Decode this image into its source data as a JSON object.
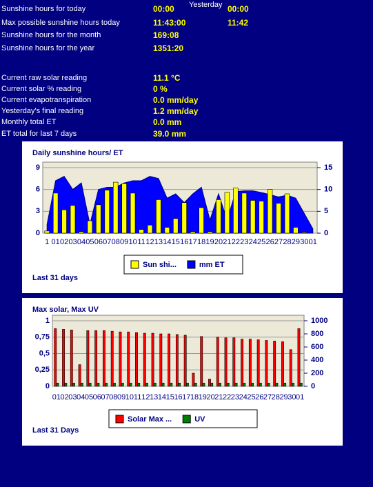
{
  "info": {
    "yesterday_header": "Yesterday",
    "rows": [
      {
        "label": "Sunshine hours for today",
        "value": "00:00",
        "yesterday": "00:00"
      },
      {
        "label": "Max possible sunshine hours today",
        "value": "11:43:00",
        "yesterday": "11:42"
      },
      {
        "label": "Sunshine hours for the month",
        "value": "169:08"
      },
      {
        "label": "Sunshine hours for the year",
        "value": "1351:20"
      },
      {
        "label": "Current raw solar reading",
        "value": "11.1 °C"
      },
      {
        "label": "Current solar % reading",
        "value": "0 %"
      },
      {
        "label": "Current evapotranspiration",
        "value": "0.0 mm/day"
      },
      {
        "label": "Yesterday's final reading",
        "value": "1.2 mm/day"
      },
      {
        "label": "Monthly total ET",
        "value": "0.0 mm"
      },
      {
        "label": "ET total for last 7 days",
        "value": "39.0 mm"
      }
    ]
  },
  "chart_data": [
    {
      "type": "bar",
      "title": "Daily sunshine hours/ ET",
      "footer": "Last 31 days",
      "grid": true,
      "categories": [
        "1",
        "01",
        "02",
        "03",
        "04",
        "05",
        "06",
        "07",
        "08",
        "09",
        "10",
        "11",
        "12",
        "13",
        "14",
        "15",
        "16",
        "17",
        "18",
        "19",
        "20",
        "21",
        "22",
        "23",
        "24",
        "25",
        "26",
        "27",
        "28",
        "29",
        "30",
        "01"
      ],
      "ylim": [
        0,
        9
      ],
      "yticks": [
        0,
        3,
        6,
        9
      ],
      "y2lim": [
        0,
        15
      ],
      "y2ticks": [
        0,
        5,
        10,
        15
      ],
      "series": [
        {
          "name": "Sun shi...",
          "type": "bar",
          "color": "#ffff00",
          "values": [
            0.3,
            5.5,
            3.2,
            3.8,
            0.2,
            1.7,
            3.9,
            5.9,
            7.0,
            6.8,
            5.5,
            0.5,
            1.1,
            4.6,
            0.8,
            2.0,
            4.2,
            0.2,
            3.5,
            0.2,
            4.6,
            5.6,
            6.2,
            5.5,
            4.5,
            4.4,
            6.0,
            4.1,
            5.4,
            0.8,
            0.1,
            null
          ]
        },
        {
          "name": "mm ET",
          "type": "area",
          "axis": "y2",
          "color": "#0000ff",
          "values": [
            2,
            12,
            13,
            10,
            11.5,
            2,
            10,
            10.5,
            10.5,
            11.5,
            12,
            12,
            13,
            12.5,
            8,
            9,
            7,
            9,
            10.5,
            3,
            9,
            3,
            9.5,
            9.7,
            9.7,
            9.3,
            8.8,
            8.3,
            8.7,
            8.0,
            4.5,
            1
          ]
        }
      ]
    },
    {
      "type": "bar",
      "title": "Max solar, Max UV",
      "footer": "Last 31 Days",
      "grid": true,
      "categories": [
        "01",
        "02",
        "03",
        "04",
        "05",
        "06",
        "07",
        "08",
        "09",
        "10",
        "11",
        "12",
        "13",
        "14",
        "15",
        "16",
        "17",
        "18",
        "19",
        "20",
        "21",
        "22",
        "23",
        "24",
        "25",
        "26",
        "27",
        "28",
        "29",
        "30",
        "01"
      ],
      "ylim": [
        0,
        1
      ],
      "yticks": [
        0,
        {
          "value": 0.25,
          "label": "0,25"
        },
        {
          "value": 0.5,
          "label": "0,5"
        },
        {
          "value": 0.75,
          "label": "0,75"
        },
        1
      ],
      "y2lim": [
        0,
        1000
      ],
      "y2ticks": [
        0,
        200,
        400,
        600,
        800,
        1000
      ],
      "series": [
        {
          "name": "Solar Max ...",
          "type": "bar",
          "axis": "y2",
          "color": "#ff0000",
          "values": [
            880,
            870,
            860,
            330,
            850,
            850,
            850,
            840,
            830,
            830,
            820,
            810,
            810,
            800,
            800,
            790,
            780,
            200,
            760,
            110,
            750,
            740,
            740,
            720,
            720,
            710,
            700,
            690,
            680,
            560,
            880
          ]
        },
        {
          "name": "UV",
          "type": "bar",
          "color": "#008000",
          "values": [
            0.05,
            0.05,
            0.05,
            0.05,
            0.05,
            0.05,
            0.05,
            0.05,
            0.05,
            0.05,
            0.05,
            0.05,
            0.05,
            0.05,
            0.05,
            0.05,
            0.05,
            0.05,
            0.05,
            0.05,
            0.05,
            0.05,
            0.05,
            0.05,
            0.05,
            0.05,
            0.05,
            0.05,
            0.05,
            0.05,
            0.05
          ]
        }
      ]
    }
  ]
}
